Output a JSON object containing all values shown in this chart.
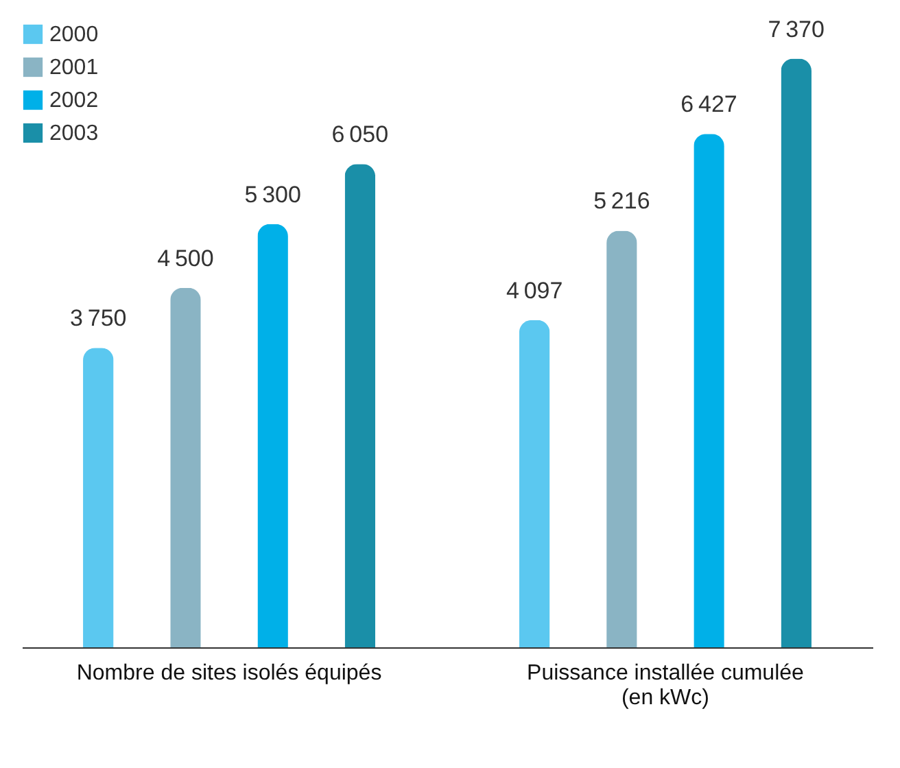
{
  "chart_data": {
    "type": "bar",
    "categories": [
      "Nombre de sites isolés équipés",
      "Puissance installée cumulée\n(en kWc)"
    ],
    "series": [
      {
        "name": "2000",
        "color": "#5bc8f0",
        "values": [
          3750,
          4097
        ]
      },
      {
        "name": "2001",
        "color": "#8ab4c4",
        "values": [
          4500,
          5216
        ]
      },
      {
        "name": "2002",
        "color": "#00b0e8",
        "values": [
          5300,
          6427
        ]
      },
      {
        "name": "2003",
        "color": "#1a8fa8",
        "values": [
          6050,
          7370
        ]
      }
    ],
    "data_labels": true,
    "legend": "top left",
    "grid": false
  }
}
